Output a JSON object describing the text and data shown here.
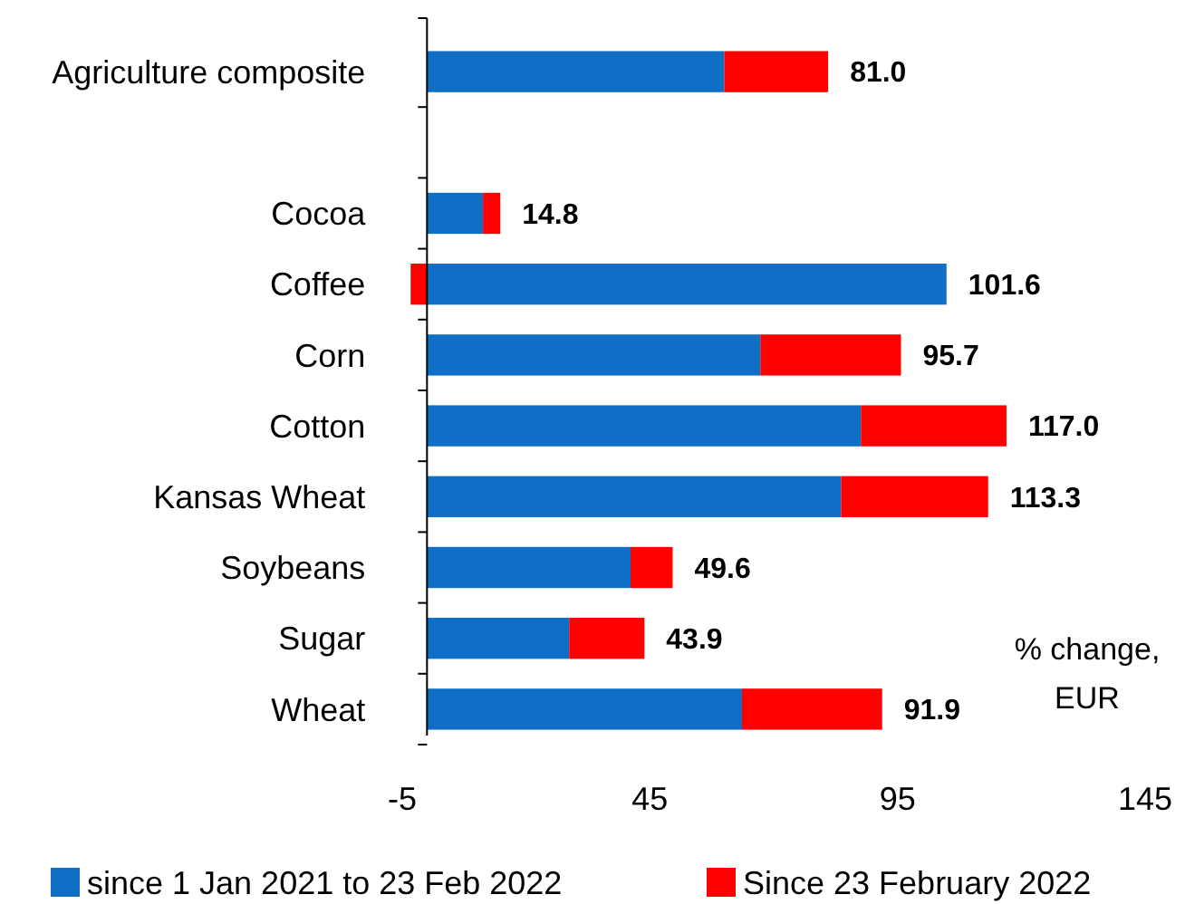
{
  "chart_data": {
    "type": "bar",
    "orientation": "horizontal",
    "stacked": true,
    "categories": [
      "Agriculture composite",
      null,
      "Cocoa",
      "Coffee",
      "Corn",
      "Cotton",
      "Kansas Wheat",
      "Soybeans",
      "Sugar",
      "Wheat"
    ],
    "series": [
      {
        "name": "since 1 Jan 2021 to 23 Feb 2022",
        "color": "#0f6fc6",
        "values": [
          60.0,
          null,
          11.3,
          104.9,
          67.3,
          87.6,
          83.6,
          41.1,
          28.7,
          63.6
        ]
      },
      {
        "name": "Since 23 February 2022",
        "color": "#ff0000",
        "values": [
          21.0,
          null,
          3.5,
          -3.3,
          28.4,
          29.4,
          29.7,
          8.5,
          15.2,
          28.3
        ]
      }
    ],
    "totals": [
      "81.0",
      null,
      "14.8",
      "101.6",
      "95.7",
      "117.0",
      "113.3",
      "49.6",
      "43.9",
      "91.9"
    ],
    "xlim": [
      -5,
      145
    ],
    "xticks": [
      -5,
      45,
      95,
      145
    ],
    "annotations": [
      "% change, EUR"
    ],
    "legend": "bottom"
  }
}
